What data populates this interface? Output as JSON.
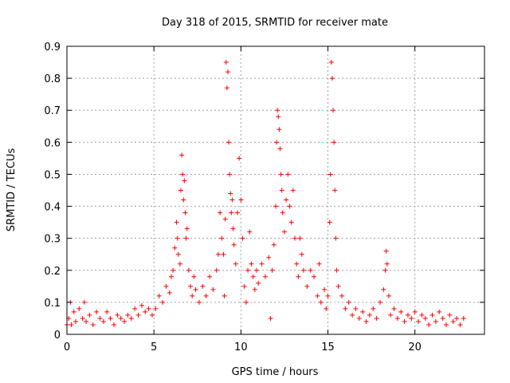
{
  "chart_data": {
    "type": "scatter",
    "title": "Day 318 of 2015, SRMTID for receiver mate",
    "xlabel": "GPS time / hours",
    "ylabel": "SRMTID / TECUs",
    "xlim": [
      0,
      24
    ],
    "ylim": [
      0,
      0.9
    ],
    "xticks": [
      0,
      5,
      10,
      15,
      20
    ],
    "yticks": [
      0,
      0.1,
      0.2,
      0.3,
      0.4,
      0.5,
      0.6,
      0.7,
      0.8,
      0.9
    ],
    "x_tick_labels": [
      "0",
      "5",
      "10",
      "15",
      "20"
    ],
    "y_tick_labels": [
      "0",
      "0.1",
      "0.2",
      "0.3",
      "0.4",
      "0.5",
      "0.6",
      "0.7",
      "0.8",
      "0.9"
    ],
    "grid": true,
    "marker": "+",
    "color": "#ff0000",
    "series": [
      {
        "name": "SRMTID",
        "points": [
          [
            0.0,
            0.03
          ],
          [
            0.1,
            0.05
          ],
          [
            0.2,
            0.1
          ],
          [
            0.25,
            0.03
          ],
          [
            0.4,
            0.07
          ],
          [
            0.5,
            0.04
          ],
          [
            0.7,
            0.08
          ],
          [
            0.9,
            0.05
          ],
          [
            1.0,
            0.1
          ],
          [
            1.1,
            0.04
          ],
          [
            1.3,
            0.06
          ],
          [
            1.5,
            0.03
          ],
          [
            1.7,
            0.07
          ],
          [
            1.9,
            0.05
          ],
          [
            2.1,
            0.04
          ],
          [
            2.3,
            0.07
          ],
          [
            2.5,
            0.05
          ],
          [
            2.7,
            0.03
          ],
          [
            2.9,
            0.06
          ],
          [
            3.1,
            0.05
          ],
          [
            3.3,
            0.04
          ],
          [
            3.5,
            0.06
          ],
          [
            3.7,
            0.05
          ],
          [
            3.9,
            0.08
          ],
          [
            4.1,
            0.06
          ],
          [
            4.3,
            0.09
          ],
          [
            4.5,
            0.07
          ],
          [
            4.7,
            0.08
          ],
          [
            4.9,
            0.06
          ],
          [
            5.1,
            0.08
          ],
          [
            5.3,
            0.12
          ],
          [
            5.5,
            0.1
          ],
          [
            5.7,
            0.15
          ],
          [
            5.9,
            0.13
          ],
          [
            6.0,
            0.18
          ],
          [
            6.1,
            0.2
          ],
          [
            6.2,
            0.27
          ],
          [
            6.3,
            0.35
          ],
          [
            6.35,
            0.3
          ],
          [
            6.4,
            0.25
          ],
          [
            6.5,
            0.22
          ],
          [
            6.55,
            0.45
          ],
          [
            6.6,
            0.56
          ],
          [
            6.65,
            0.5
          ],
          [
            6.7,
            0.42
          ],
          [
            6.75,
            0.48
          ],
          [
            6.8,
            0.38
          ],
          [
            6.85,
            0.3
          ],
          [
            6.9,
            0.33
          ],
          [
            7.0,
            0.2
          ],
          [
            7.1,
            0.15
          ],
          [
            7.2,
            0.12
          ],
          [
            7.3,
            0.18
          ],
          [
            7.4,
            0.14
          ],
          [
            7.6,
            0.1
          ],
          [
            7.8,
            0.15
          ],
          [
            8.0,
            0.12
          ],
          [
            8.2,
            0.18
          ],
          [
            8.4,
            0.14
          ],
          [
            8.6,
            0.2
          ],
          [
            8.7,
            0.25
          ],
          [
            8.8,
            0.38
          ],
          [
            8.9,
            0.3
          ],
          [
            9.0,
            0.25
          ],
          [
            9.05,
            0.12
          ],
          [
            9.1,
            0.36
          ],
          [
            9.15,
            0.85
          ],
          [
            9.2,
            0.77
          ],
          [
            9.25,
            0.82
          ],
          [
            9.3,
            0.6
          ],
          [
            9.35,
            0.5
          ],
          [
            9.4,
            0.44
          ],
          [
            9.45,
            0.38
          ],
          [
            9.5,
            0.42
          ],
          [
            9.55,
            0.33
          ],
          [
            9.6,
            0.28
          ],
          [
            9.7,
            0.22
          ],
          [
            9.8,
            0.38
          ],
          [
            9.9,
            0.55
          ],
          [
            10.0,
            0.42
          ],
          [
            10.1,
            0.3
          ],
          [
            10.2,
            0.15
          ],
          [
            10.3,
            0.1
          ],
          [
            10.4,
            0.2
          ],
          [
            10.5,
            0.32
          ],
          [
            10.6,
            0.22
          ],
          [
            10.7,
            0.18
          ],
          [
            10.8,
            0.14
          ],
          [
            10.9,
            0.2
          ],
          [
            11.0,
            0.16
          ],
          [
            11.2,
            0.22
          ],
          [
            11.4,
            0.18
          ],
          [
            11.6,
            0.24
          ],
          [
            11.7,
            0.05
          ],
          [
            11.8,
            0.2
          ],
          [
            11.9,
            0.28
          ],
          [
            12.0,
            0.4
          ],
          [
            12.05,
            0.6
          ],
          [
            12.1,
            0.7
          ],
          [
            12.15,
            0.68
          ],
          [
            12.2,
            0.64
          ],
          [
            12.25,
            0.58
          ],
          [
            12.3,
            0.5
          ],
          [
            12.35,
            0.45
          ],
          [
            12.4,
            0.38
          ],
          [
            12.5,
            0.32
          ],
          [
            12.6,
            0.42
          ],
          [
            12.7,
            0.5
          ],
          [
            12.8,
            0.4
          ],
          [
            12.9,
            0.35
          ],
          [
            13.0,
            0.45
          ],
          [
            13.1,
            0.3
          ],
          [
            13.2,
            0.22
          ],
          [
            13.3,
            0.18
          ],
          [
            13.4,
            0.3
          ],
          [
            13.5,
            0.25
          ],
          [
            13.6,
            0.2
          ],
          [
            13.8,
            0.15
          ],
          [
            14.0,
            0.2
          ],
          [
            14.2,
            0.18
          ],
          [
            14.4,
            0.12
          ],
          [
            14.5,
            0.22
          ],
          [
            14.6,
            0.1
          ],
          [
            14.8,
            0.14
          ],
          [
            14.9,
            0.08
          ],
          [
            15.0,
            0.12
          ],
          [
            15.1,
            0.35
          ],
          [
            15.15,
            0.5
          ],
          [
            15.2,
            0.85
          ],
          [
            15.25,
            0.8
          ],
          [
            15.3,
            0.7
          ],
          [
            15.35,
            0.6
          ],
          [
            15.4,
            0.45
          ],
          [
            15.45,
            0.3
          ],
          [
            15.5,
            0.2
          ],
          [
            15.6,
            0.15
          ],
          [
            15.8,
            0.12
          ],
          [
            16.0,
            0.08
          ],
          [
            16.2,
            0.1
          ],
          [
            16.4,
            0.06
          ],
          [
            16.6,
            0.08
          ],
          [
            16.8,
            0.05
          ],
          [
            17.0,
            0.07
          ],
          [
            17.2,
            0.04
          ],
          [
            17.4,
            0.06
          ],
          [
            17.6,
            0.08
          ],
          [
            17.8,
            0.05
          ],
          [
            18.0,
            0.1
          ],
          [
            18.2,
            0.14
          ],
          [
            18.3,
            0.2
          ],
          [
            18.35,
            0.26
          ],
          [
            18.4,
            0.22
          ],
          [
            18.5,
            0.12
          ],
          [
            18.6,
            0.06
          ],
          [
            18.8,
            0.08
          ],
          [
            19.0,
            0.05
          ],
          [
            19.2,
            0.07
          ],
          [
            19.4,
            0.04
          ],
          [
            19.6,
            0.06
          ],
          [
            19.8,
            0.05
          ],
          [
            20.0,
            0.07
          ],
          [
            20.2,
            0.04
          ],
          [
            20.4,
            0.06
          ],
          [
            20.6,
            0.05
          ],
          [
            20.8,
            0.03
          ],
          [
            21.0,
            0.06
          ],
          [
            21.2,
            0.04
          ],
          [
            21.4,
            0.07
          ],
          [
            21.6,
            0.05
          ],
          [
            21.8,
            0.03
          ],
          [
            22.0,
            0.06
          ],
          [
            22.2,
            0.04
          ],
          [
            22.4,
            0.05
          ],
          [
            22.6,
            0.03
          ],
          [
            22.8,
            0.05
          ]
        ]
      }
    ]
  }
}
